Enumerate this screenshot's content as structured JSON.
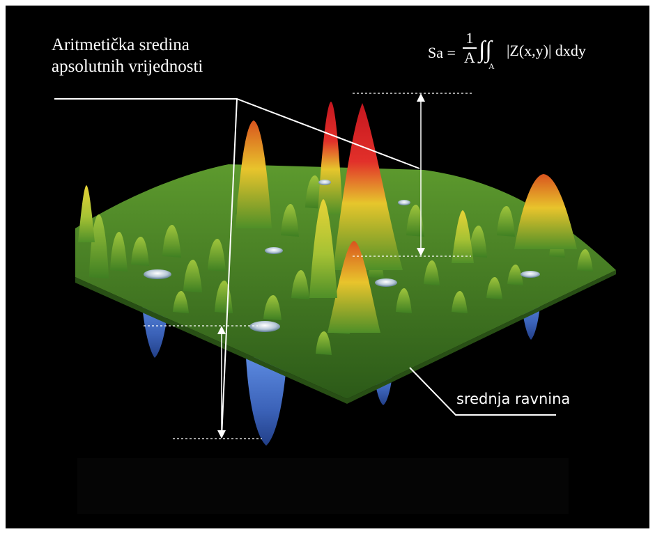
{
  "labels": {
    "sa_line1": "Aritmetička sredina",
    "sa_line2": "apsolutnih vrijednosti",
    "mean_plane": "srednja ravnina"
  },
  "formula": {
    "lhs": "Sa =",
    "numerator": "1",
    "denominator": "A",
    "integral": "∫∫",
    "subscript": "A",
    "integrand": "|Z(x,y)| dxdy"
  },
  "colors": {
    "background": "#000000",
    "surface_base": "#3f7a22",
    "peak_mid": "#e0c22a",
    "peak_high": "#d62a24",
    "valley": "#3e68c0",
    "annotation": "#ffffff"
  }
}
